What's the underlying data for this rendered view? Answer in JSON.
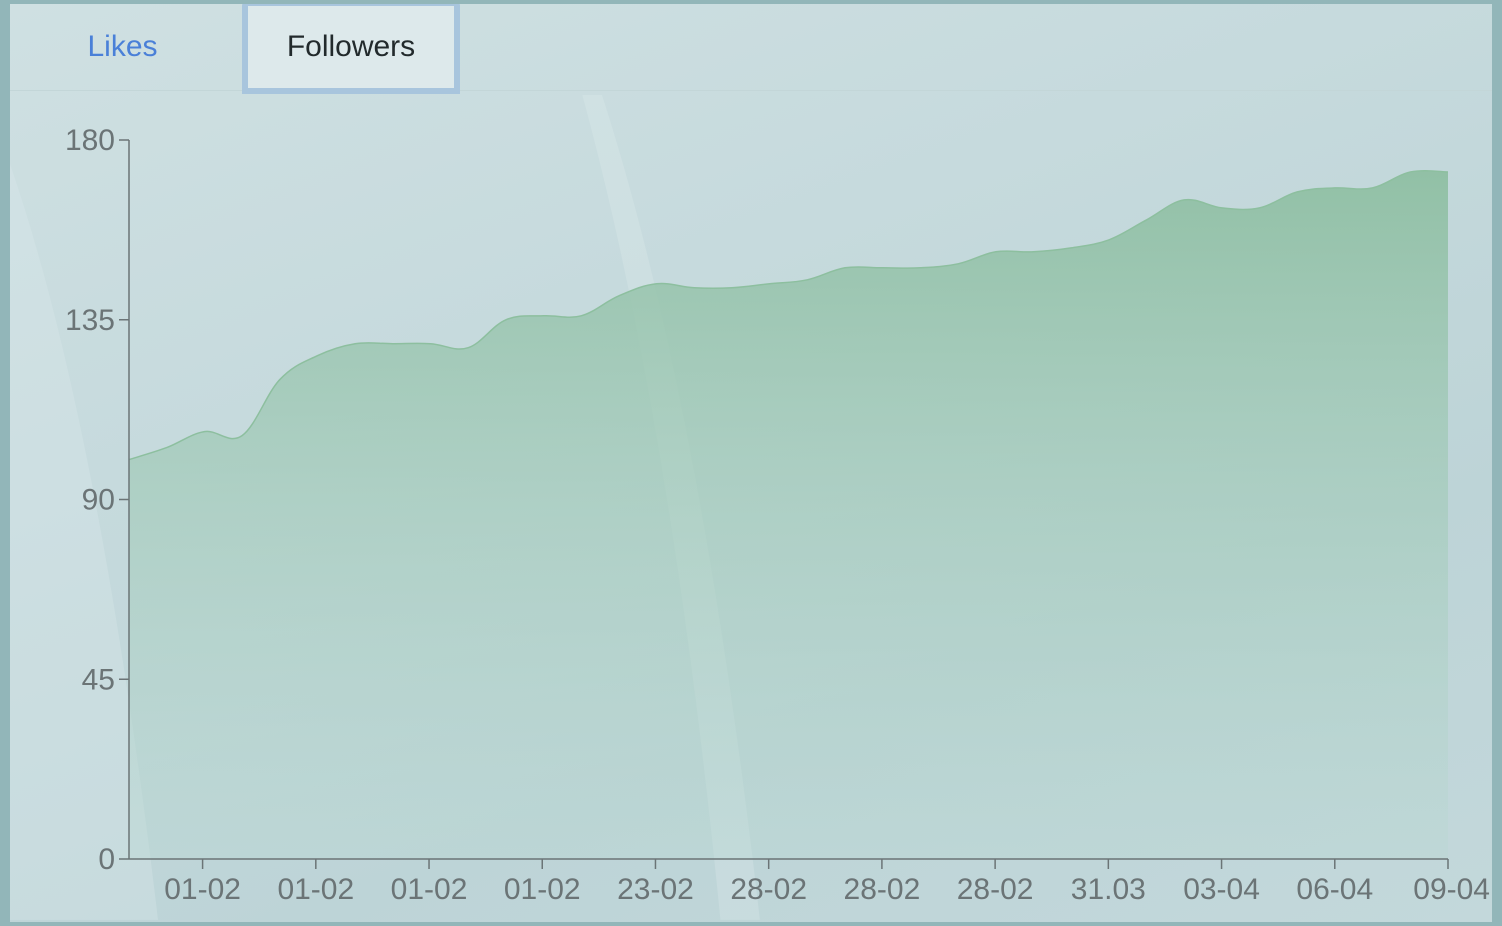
{
  "tabs": [
    {
      "label": "Likes",
      "active": false,
      "color": "#4a80d8"
    },
    {
      "label": "Followers",
      "active": true
    }
  ],
  "colors": {
    "area_top": "#8fbfa3",
    "area_bottom": "#b9d8d2",
    "line": "#8dbf9f",
    "axis": "#6b7476"
  },
  "chart_data": {
    "type": "area",
    "title": "",
    "xlabel": "",
    "ylabel": "",
    "ylim": [
      0,
      180
    ],
    "yticks": [
      "0",
      "45",
      "90",
      "135",
      "180"
    ],
    "xticks": [
      "01-02",
      "01-02",
      "01-02",
      "01-02",
      "23-02",
      "28-02",
      "28-02",
      "28-02",
      "31.03",
      "03-04",
      "06-04",
      "09-04"
    ],
    "grid": false,
    "legend": "none",
    "series": [
      {
        "values": [
          100,
          103,
          107,
          106,
          120,
          126,
          129,
          129,
          129,
          128,
          135,
          136,
          136,
          141,
          144,
          143,
          143,
          144,
          145,
          148,
          148,
          148,
          149,
          152,
          152,
          153,
          155,
          160,
          165,
          163,
          163,
          167,
          168,
          168,
          172,
          172
        ]
      }
    ]
  }
}
